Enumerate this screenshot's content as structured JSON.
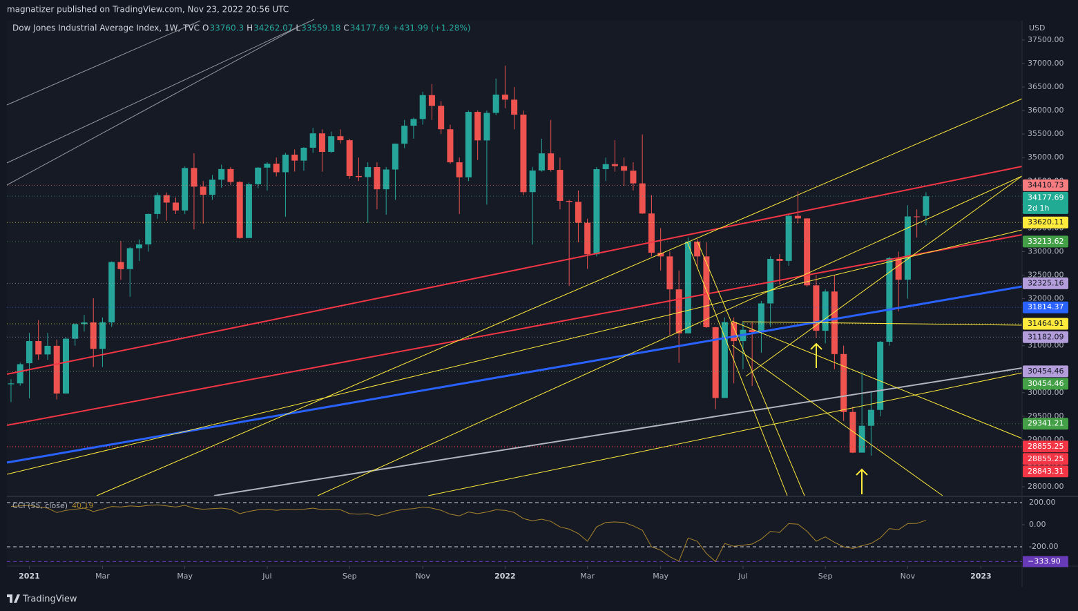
{
  "header": {
    "publisher": "magnatizer published on TradingView.com, Nov 23, 2022 20:56 UTC"
  },
  "footer": {
    "brand": "TradingView"
  },
  "chart_data": {
    "type": "candlestick",
    "title": "Dow Jones Industrial Average Index, 1W, TVC",
    "ohlc_letters": [
      "O",
      "H",
      "L",
      "C"
    ],
    "change": "+431.99 (+1.28%)",
    "currency": "USD",
    "up_color": "#26a69a",
    "down_color": "#ef5350",
    "xlim": [
      -0.45,
      110.5
    ],
    "xticks": [
      {
        "value": 2,
        "label": "2021"
      },
      {
        "value": 10,
        "label": "Mar"
      },
      {
        "value": 19,
        "label": "May"
      },
      {
        "value": 28,
        "label": "Jul"
      },
      {
        "value": 37,
        "label": "Sep"
      },
      {
        "value": 45,
        "label": "Nov"
      },
      {
        "value": 54,
        "label": "2022"
      },
      {
        "value": 63,
        "label": "Mar"
      },
      {
        "value": 71,
        "label": "May"
      },
      {
        "value": 80,
        "label": "Jul"
      },
      {
        "value": 89,
        "label": "Sep"
      },
      {
        "value": 98,
        "label": "Nov"
      },
      {
        "value": 106,
        "label": "2023"
      }
    ],
    "ylim": [
      27810,
      37910
    ],
    "yticks": [
      {
        "value": 28000,
        "label": "28000.00"
      },
      {
        "value": 28500,
        "label": "28500.00"
      },
      {
        "value": 29000,
        "label": "29000.00"
      },
      {
        "value": 29500,
        "label": "29500.00"
      },
      {
        "value": 30000,
        "label": "30000.00"
      },
      {
        "value": 30500,
        "label": "30500.00"
      },
      {
        "value": 31000,
        "label": "31000.00"
      },
      {
        "value": 31500,
        "label": "31500.00"
      },
      {
        "value": 32000,
        "label": "32000.00"
      },
      {
        "value": 32500,
        "label": "32500.00"
      },
      {
        "value": 33000,
        "label": "33000.00"
      },
      {
        "value": 33500,
        "label": "33500.00"
      },
      {
        "value": 34000,
        "label": "34000.00"
      },
      {
        "value": 34500,
        "label": "34500.00"
      },
      {
        "value": 35000,
        "label": "35000.00"
      },
      {
        "value": 35500,
        "label": "35500.00"
      },
      {
        "value": 36000,
        "label": "36000.00"
      },
      {
        "value": 36500,
        "label": "36500.00"
      },
      {
        "value": 37000,
        "label": "37000.00"
      },
      {
        "value": 37500,
        "label": "37500.00"
      }
    ],
    "ohlc": [
      [
        30180,
        30290,
        29800,
        30199
      ],
      [
        30199,
        30640,
        30150,
        30606
      ],
      [
        30627,
        31272,
        29882,
        31098
      ],
      [
        31098,
        31543,
        30700,
        30814
      ],
      [
        30814,
        31272,
        30700,
        30997
      ],
      [
        30997,
        31130,
        29856,
        29983
      ],
      [
        29983,
        31180,
        29983,
        31148
      ],
      [
        31148,
        31478,
        31000,
        31458
      ],
      [
        31458,
        31654,
        31300,
        31494
      ],
      [
        31494,
        32010,
        30548,
        30932
      ],
      [
        30932,
        31600,
        30547,
        31496
      ],
      [
        31496,
        32793,
        31400,
        32779
      ],
      [
        32779,
        33227,
        32400,
        32628
      ],
      [
        32628,
        33098,
        32040,
        33073
      ],
      [
        33073,
        33260,
        32800,
        33153
      ],
      [
        33153,
        33810,
        33000,
        33801
      ],
      [
        33801,
        34256,
        33700,
        34200
      ],
      [
        34200,
        34257,
        33660,
        34043
      ],
      [
        34043,
        34150,
        33800,
        33875
      ],
      [
        33875,
        34811,
        33800,
        34778
      ],
      [
        34778,
        35092,
        33473,
        34382
      ],
      [
        34382,
        34500,
        33595,
        34208
      ],
      [
        34208,
        34630,
        34100,
        34529
      ],
      [
        34529,
        34849,
        34360,
        34756
      ],
      [
        34756,
        34800,
        34420,
        34480
      ],
      [
        34480,
        34500,
        33272,
        33290
      ],
      [
        33290,
        34470,
        33290,
        34433
      ],
      [
        34433,
        34800,
        34350,
        34786
      ],
      [
        34786,
        34900,
        34300,
        34870
      ],
      [
        34870,
        35000,
        34600,
        34688
      ],
      [
        34688,
        35100,
        33741,
        35062
      ],
      [
        35062,
        35171,
        34700,
        34935
      ],
      [
        34935,
        35225,
        34720,
        35209
      ],
      [
        35209,
        35631,
        35100,
        35515
      ],
      [
        35515,
        35600,
        34700,
        35120
      ],
      [
        35120,
        35550,
        35100,
        35455
      ],
      [
        35455,
        35600,
        35300,
        35369
      ],
      [
        35369,
        35400,
        34550,
        34608
      ],
      [
        34608,
        35000,
        34500,
        34585
      ],
      [
        34585,
        34900,
        33613,
        34798
      ],
      [
        34798,
        34900,
        33900,
        34326
      ],
      [
        34326,
        34800,
        33786,
        34746
      ],
      [
        34746,
        35300,
        34100,
        35295
      ],
      [
        35295,
        35800,
        35200,
        35677
      ],
      [
        35677,
        35850,
        35400,
        35820
      ],
      [
        35820,
        36400,
        35700,
        36328
      ],
      [
        36328,
        36565,
        35800,
        36100
      ],
      [
        36100,
        36200,
        35500,
        35602
      ],
      [
        35602,
        35700,
        34870,
        34899
      ],
      [
        34899,
        35000,
        33800,
        34580
      ],
      [
        34580,
        36000,
        34500,
        35971
      ],
      [
        35971,
        36000,
        34950,
        35365
      ],
      [
        35365,
        36000,
        34000,
        35950
      ],
      [
        35950,
        36679,
        35900,
        36338
      ],
      [
        36338,
        36952,
        36050,
        36231
      ],
      [
        36231,
        36500,
        35600,
        35912
      ],
      [
        35912,
        36000,
        34200,
        34265
      ],
      [
        34265,
        34800,
        33150,
        34725
      ],
      [
        34725,
        35400,
        34700,
        35089
      ],
      [
        35089,
        35800,
        34700,
        34738
      ],
      [
        34738,
        35000,
        33900,
        34079
      ],
      [
        34079,
        34100,
        32272,
        34059
      ],
      [
        34059,
        34300,
        33200,
        33614
      ],
      [
        33614,
        33700,
        32633,
        32944
      ],
      [
        32944,
        34800,
        32900,
        34754
      ],
      [
        34754,
        35000,
        34500,
        34861
      ],
      [
        34861,
        35372,
        34700,
        34818
      ],
      [
        34818,
        35000,
        34400,
        34721
      ],
      [
        34721,
        34900,
        34300,
        34451
      ],
      [
        34451,
        35492,
        33800,
        33811
      ],
      [
        33811,
        34200,
        32900,
        32977
      ],
      [
        32977,
        33500,
        32600,
        32899
      ],
      [
        32899,
        33000,
        31228,
        32197
      ],
      [
        32197,
        32600,
        30636,
        31262
      ],
      [
        31262,
        33300,
        31262,
        33213
      ],
      [
        33213,
        33270,
        32640,
        32899
      ],
      [
        32899,
        33200,
        31380,
        31393
      ],
      [
        31393,
        31400,
        29653,
        29888
      ],
      [
        29888,
        31600,
        29888,
        31501
      ],
      [
        31501,
        31600,
        30200,
        31097
      ],
      [
        31097,
        31500,
        30500,
        31338
      ],
      [
        31338,
        31500,
        30143,
        31289
      ],
      [
        31289,
        31950,
        30850,
        31899
      ],
      [
        31899,
        32900,
        31400,
        32845
      ],
      [
        32845,
        32950,
        32300,
        32803
      ],
      [
        32803,
        33800,
        32700,
        33761
      ],
      [
        33761,
        34281,
        33600,
        33706
      ],
      [
        33706,
        33710,
        32250,
        32283
      ],
      [
        32283,
        32500,
        31162,
        31318
      ],
      [
        31318,
        32200,
        31050,
        32152
      ],
      [
        32152,
        32500,
        30500,
        30822
      ],
      [
        30822,
        31000,
        29400,
        29590
      ],
      [
        29590,
        29700,
        28715,
        28726
      ],
      [
        28726,
        30454,
        28800,
        29297
      ],
      [
        29297,
        30038,
        28660,
        29635
      ],
      [
        29635,
        31100,
        29500,
        31083
      ],
      [
        31083,
        32889,
        31000,
        32862
      ],
      [
        32862,
        33000,
        31727,
        32403
      ],
      [
        32403,
        33987,
        32000,
        33748
      ],
      [
        33748,
        33900,
        33300,
        33746
      ],
      [
        33760.3,
        34262.07,
        33559.18,
        34177.69
      ]
    ],
    "last_price": {
      "countdown": "2d 1h",
      "color": "#22ab94"
    },
    "price_labels": [
      {
        "value": 34410.73,
        "color": "#f77c80",
        "text_color": "#131722"
      },
      {
        "value": 33620.11,
        "color": "#ffeb3b",
        "text_color": "#131722"
      },
      {
        "value": 33213.62,
        "color": "#43a047",
        "text_color": "#ffffff"
      },
      {
        "value": 32325.16,
        "color": "#b39ddb",
        "text_color": "#131722"
      },
      {
        "value": 31814.37,
        "color": "#2962ff",
        "text_color": "#ffffff"
      },
      {
        "value": 31464.91,
        "color": "#ffeb3b",
        "text_color": "#131722"
      },
      {
        "value": 31182.09,
        "color": "#b39ddb",
        "text_color": "#131722"
      },
      {
        "value": 30454.46,
        "color": "#b39ddb",
        "text_color": "#131722"
      },
      {
        "value": 30454.46,
        "color": "#43a047",
        "text_color": "#ffffff"
      },
      {
        "value": 29341.21,
        "color": "#43a047",
        "text_color": "#ffffff"
      },
      {
        "value": 28855.25,
        "color": "#f23645",
        "text_color": "#ffffff"
      },
      {
        "value": 28855.25,
        "color": "#f23645",
        "text_color": "#ffffff"
      },
      {
        "value": 28843.31,
        "color": "#f23645",
        "text_color": "#ffffff"
      }
    ],
    "indicator": {
      "type": "line",
      "name": "CCI (55, close)",
      "color": "#a8842c",
      "ylim": [
        -375,
        250
      ],
      "yticks": [
        {
          "value": 200,
          "label": "200.00"
        },
        {
          "value": 0,
          "label": "0.00"
        },
        {
          "value": -200,
          "label": "-200.00"
        }
      ],
      "hline": {
        "value": -333.9,
        "label": "−333.90",
        "color": "#673ab7"
      },
      "values": [
        165,
        170,
        175,
        160,
        150,
        110,
        130,
        140,
        150,
        120,
        140,
        165,
        160,
        170,
        165,
        175,
        180,
        170,
        160,
        175,
        150,
        140,
        145,
        150,
        140,
        100,
        120,
        135,
        140,
        130,
        140,
        135,
        140,
        150,
        135,
        140,
        135,
        100,
        95,
        100,
        80,
        100,
        125,
        140,
        145,
        160,
        150,
        130,
        95,
        80,
        115,
        100,
        115,
        135,
        130,
        110,
        55,
        35,
        50,
        30,
        -20,
        -40,
        -80,
        -150,
        -20,
        20,
        25,
        20,
        -10,
        -50,
        -200,
        -230,
        -290,
        -330,
        -120,
        -150,
        -260,
        -333.9,
        -170,
        -195,
        -185,
        -175,
        -130,
        -60,
        -70,
        10,
        5,
        -60,
        -150,
        -110,
        -160,
        -200,
        -215,
        -190,
        -170,
        -120,
        -35,
        -45,
        10,
        12,
        40.19
      ]
    }
  }
}
